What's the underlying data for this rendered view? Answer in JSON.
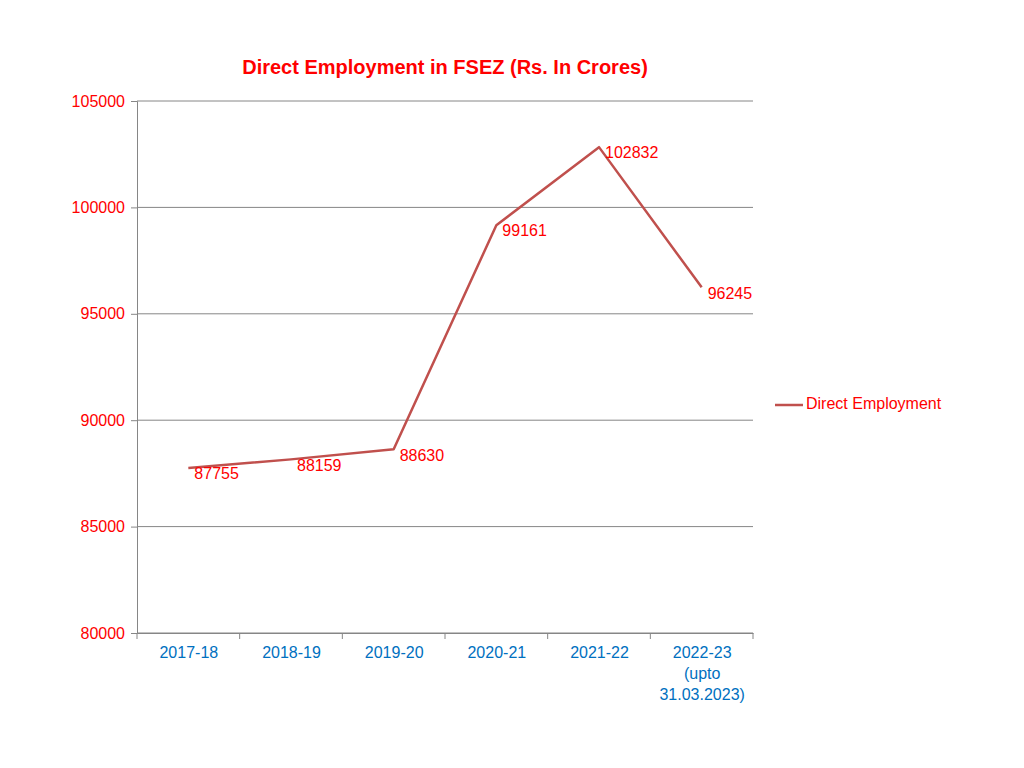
{
  "chart_data": {
    "type": "line",
    "title": "Direct Employment in FSEZ (Rs. In Crores)",
    "categories": [
      "2017-18",
      "2018-19",
      "2019-20",
      "2020-21",
      "2021-22",
      "2022-23 (upto 31.03.2023)"
    ],
    "series": [
      {
        "name": "Direct Employment",
        "color": "#c0504d",
        "values": [
          87755,
          88159,
          88630,
          99161,
          102832,
          96245
        ]
      }
    ],
    "ylim": [
      80000,
      105000
    ],
    "yticks": [
      80000,
      85000,
      90000,
      95000,
      100000,
      105000
    ],
    "grid": true,
    "legend": "right",
    "data_labels": true
  }
}
